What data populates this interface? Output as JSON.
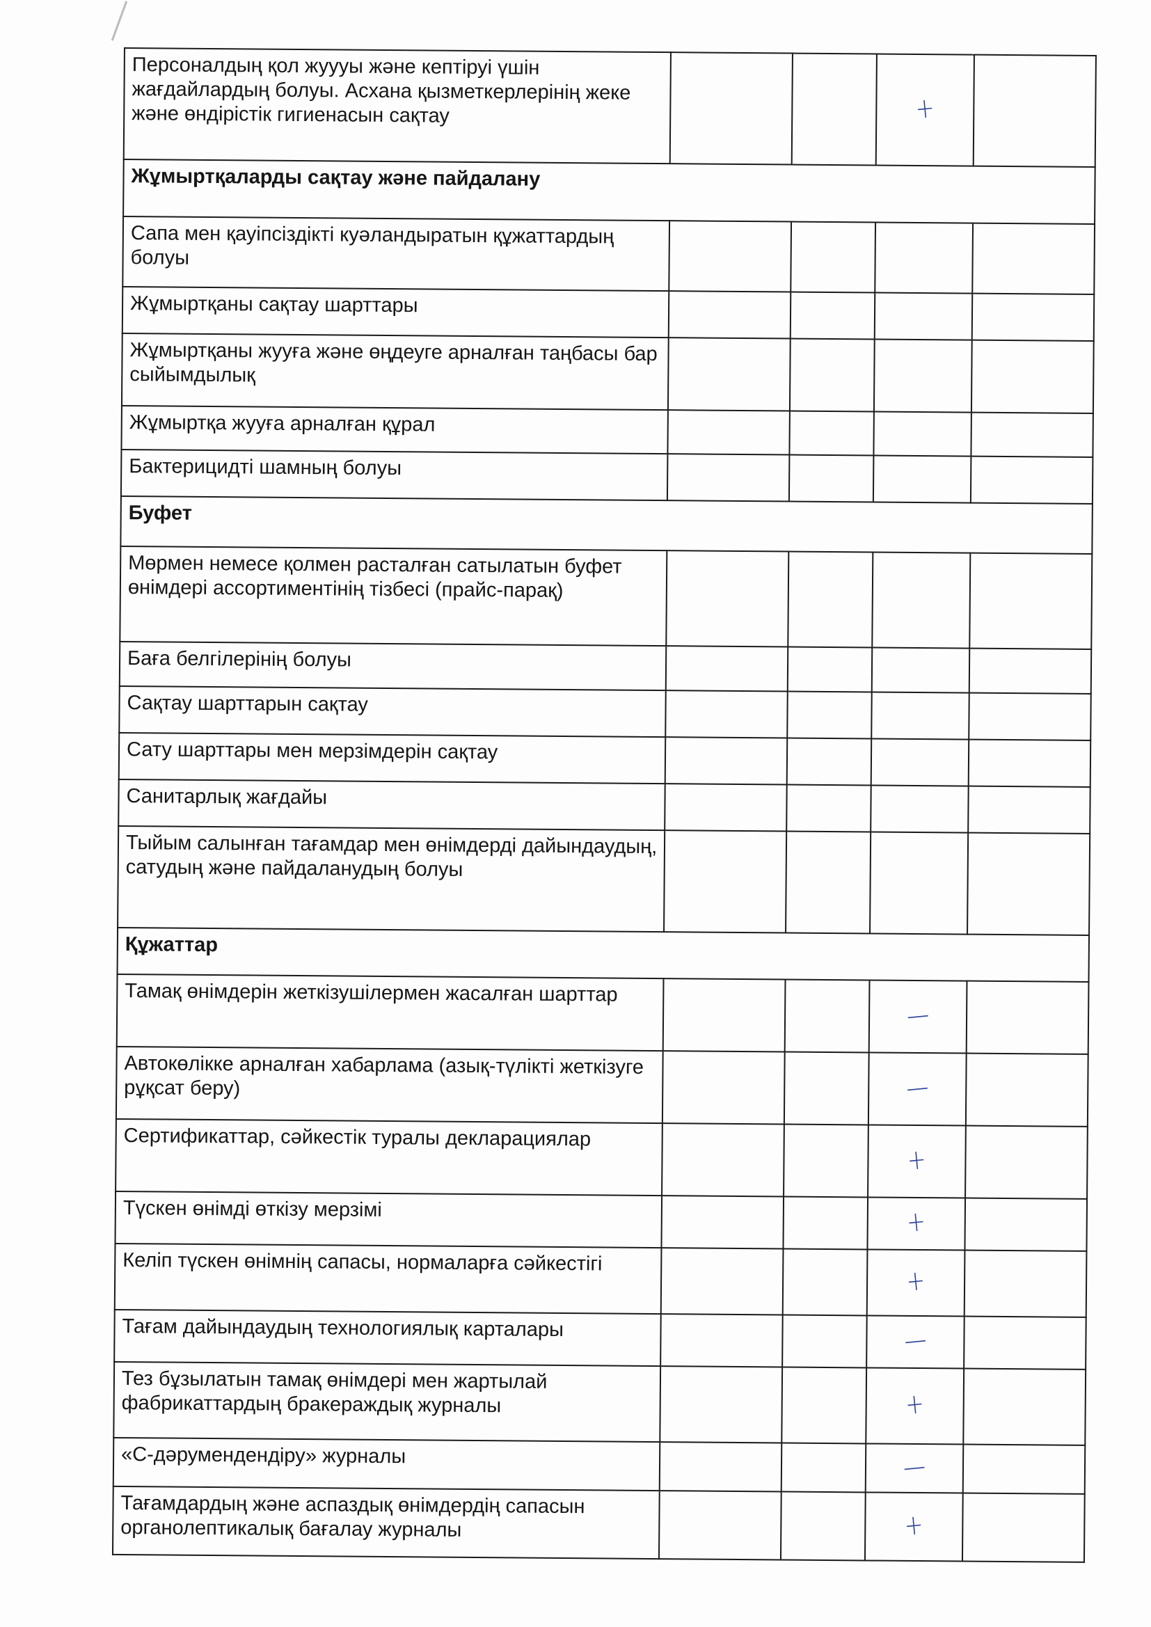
{
  "table": {
    "rows": [
      {
        "type": "item",
        "text": "Персоналдың қол жуууы және кептіруі үшін жағдайлардың болуы. Асхана қызметкерлерінің жеке және өндірістік гигиенасын сақтау",
        "mark": "+"
      },
      {
        "type": "section",
        "text": "Жұмыртқаларды сақтау және пайдалану"
      },
      {
        "type": "item",
        "text": "Сапа мен қауіпсіздікті куәландыратын құжаттардың болуы",
        "mark": ""
      },
      {
        "type": "item",
        "text": "Жұмыртқаны сақтау шарттары",
        "mark": ""
      },
      {
        "type": "item",
        "text": "Жұмыртқаны жууға және өңдеуге арналған таңбасы бар сыйымдылық",
        "mark": ""
      },
      {
        "type": "item",
        "text": "Жұмыртқа жууға арналған құрал",
        "mark": ""
      },
      {
        "type": "item",
        "text": "Бактерицидті шамның болуы",
        "mark": ""
      },
      {
        "type": "section",
        "text": "Буфет"
      },
      {
        "type": "item",
        "text": "Мөрмен немесе қолмен расталған сатылатын буфет өнімдері ассортиментінің тізбесі (прайс-парақ)",
        "mark": ""
      },
      {
        "type": "item",
        "text": "Баға белгілерінің болуы",
        "mark": ""
      },
      {
        "type": "item",
        "text": "Сақтау шарттарын сақтау",
        "mark": ""
      },
      {
        "type": "item",
        "text": "Сату шарттары мен мерзімдерін сақтау",
        "mark": ""
      },
      {
        "type": "item",
        "text": "Санитарлық жағдайы",
        "mark": ""
      },
      {
        "type": "item",
        "text": "Тыйым салынған тағамдар мен өнімдерді дайындаудың, сатудың және пайдаланудың болуы",
        "mark": ""
      },
      {
        "type": "section",
        "text": "Құжаттар"
      },
      {
        "type": "item",
        "text": "Тамақ өнімдерін жеткізушілермен жасалған шарттар",
        "mark": "—"
      },
      {
        "type": "item",
        "text": "Автокөлікке арналған хабарлама (азық-түлікті жеткізуге рұқсат беру)",
        "mark": "—"
      },
      {
        "type": "item",
        "text": "Сертификаттар, сәйкестік туралы декларациялар",
        "mark": "+"
      },
      {
        "type": "item",
        "text": "Түскен өнімді өткізу мерзімі",
        "mark": "+"
      },
      {
        "type": "item",
        "text": "Келіп түскен өнімнің сапасы, нормаларға сәйкестігі",
        "mark": "+"
      },
      {
        "type": "item",
        "text": "Тағам дайындаудың технологиялық карталары",
        "mark": "—"
      },
      {
        "type": "item",
        "text": "Тез бұзылатын тамақ өнімдері мен жартылай фабрикаттардың бракераждық журналы",
        "mark": "+"
      },
      {
        "type": "item",
        "text": "«С-дәрумендендіру» журналы",
        "mark": "—"
      },
      {
        "type": "item",
        "text": "Тағамдардың және аспаздық өнімдердің сапасын органолептикалық бағалау журналы",
        "mark": "+"
      }
    ]
  },
  "colors": {
    "ink": "#161616",
    "pen": "#2a3f9a"
  }
}
